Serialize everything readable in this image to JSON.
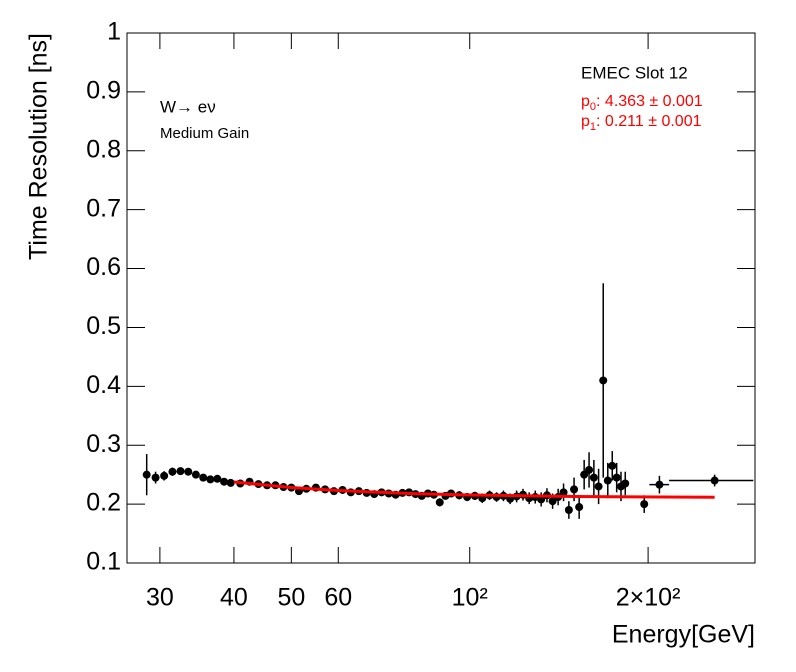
{
  "chart_data": {
    "type": "errorbar",
    "y_label": "Time Resolution [ns]",
    "x_label": "Energy[GeV]",
    "log_x": true,
    "xlim": [
      26.4,
      303
    ],
    "ylim": [
      0.1,
      1
    ],
    "xticks": [
      30,
      40,
      50,
      60,
      {
        "value": 100,
        "label": "10²"
      },
      {
        "value": 200,
        "label": "2×10²"
      }
    ],
    "yticks": [
      0.1,
      0.2,
      0.3,
      0.4,
      0.5,
      0.6,
      0.7,
      0.8,
      0.9,
      1
    ],
    "annotations": [
      "W→ eν",
      "Medium Gain"
    ],
    "legend_title": "EMEC Slot 12",
    "fit_params": [
      {
        "symbol": "p",
        "index": "0",
        "text": ": 4.363 ± 0.001"
      },
      {
        "symbol": "p",
        "index": "1",
        "text": ": 0.211 ± 0.001"
      }
    ],
    "series": [
      {
        "color": "#000000",
        "x": [
          28.5,
          29.5,
          30.5,
          31.5,
          32.5,
          33.5,
          34.5,
          35.5,
          36.5,
          37.5,
          38.5,
          39.5,
          41,
          42.5,
          44,
          45.5,
          47,
          48.5,
          50,
          51.5,
          53,
          55,
          57,
          59,
          61,
          63,
          65,
          67,
          69,
          71,
          73,
          75,
          77,
          79,
          81,
          83,
          85,
          87,
          89,
          91,
          93,
          96,
          99,
          102,
          105,
          108,
          111,
          114,
          117,
          120,
          123,
          126,
          129,
          132,
          135,
          138,
          141,
          144,
          147,
          150,
          153,
          156,
          159,
          162,
          165,
          168,
          171,
          174,
          177,
          180,
          183,
          197,
          209,
          259
        ],
        "values": [
          0.25,
          0.245,
          0.248,
          0.255,
          0.256,
          0.255,
          0.25,
          0.245,
          0.242,
          0.243,
          0.238,
          0.236,
          0.235,
          0.238,
          0.234,
          0.232,
          0.232,
          0.229,
          0.228,
          0.222,
          0.226,
          0.228,
          0.225,
          0.222,
          0.224,
          0.22,
          0.222,
          0.219,
          0.217,
          0.22,
          0.218,
          0.216,
          0.219,
          0.22,
          0.217,
          0.214,
          0.218,
          0.216,
          0.203,
          0.214,
          0.218,
          0.215,
          0.212,
          0.214,
          0.21,
          0.215,
          0.212,
          0.214,
          0.209,
          0.213,
          0.216,
          0.21,
          0.212,
          0.208,
          0.215,
          0.205,
          0.212,
          0.22,
          0.19,
          0.225,
          0.195,
          0.25,
          0.258,
          0.245,
          0.23,
          0.41,
          0.24,
          0.265,
          0.245,
          0.23,
          0.235,
          0.2,
          0.233,
          0.24
        ],
        "errors": [
          0.035,
          0.01,
          0.008,
          0.007,
          0.006,
          0.006,
          0.005,
          0.005,
          0.005,
          0.005,
          0.005,
          0.005,
          0.004,
          0.004,
          0.004,
          0.004,
          0.004,
          0.004,
          0.004,
          0.004,
          0.004,
          0.004,
          0.004,
          0.004,
          0.004,
          0.004,
          0.005,
          0.005,
          0.005,
          0.005,
          0.005,
          0.005,
          0.005,
          0.006,
          0.006,
          0.006,
          0.006,
          0.006,
          0.007,
          0.006,
          0.006,
          0.007,
          0.007,
          0.007,
          0.008,
          0.008,
          0.008,
          0.009,
          0.009,
          0.01,
          0.01,
          0.01,
          0.011,
          0.012,
          0.012,
          0.013,
          0.014,
          0.015,
          0.015,
          0.02,
          0.02,
          0.025,
          0.03,
          0.03,
          0.03,
          0.165,
          0.03,
          0.025,
          0.025,
          0.025,
          0.02,
          0.015,
          0.015,
          0.01
        ],
        "xerrors": [
          null,
          null,
          null,
          null,
          null,
          null,
          null,
          null,
          null,
          null,
          null,
          null,
          null,
          null,
          null,
          null,
          null,
          null,
          null,
          null,
          null,
          null,
          null,
          null,
          null,
          null,
          null,
          null,
          null,
          null,
          null,
          null,
          null,
          null,
          null,
          null,
          null,
          null,
          null,
          null,
          null,
          null,
          null,
          null,
          null,
          null,
          null,
          null,
          null,
          null,
          null,
          null,
          null,
          null,
          null,
          null,
          null,
          null,
          null,
          null,
          null,
          null,
          null,
          null,
          null,
          null,
          null,
          null,
          null,
          null,
          null,
          null,
          8,
          42
        ]
      }
    ],
    "fit": {
      "color": "#ff0000",
      "x": [
        40,
        50,
        60,
        80,
        100,
        150,
        259
      ],
      "values": [
        0.2375,
        0.2283,
        0.2231,
        0.2179,
        0.2155,
        0.2129,
        0.2117
      ]
    }
  }
}
